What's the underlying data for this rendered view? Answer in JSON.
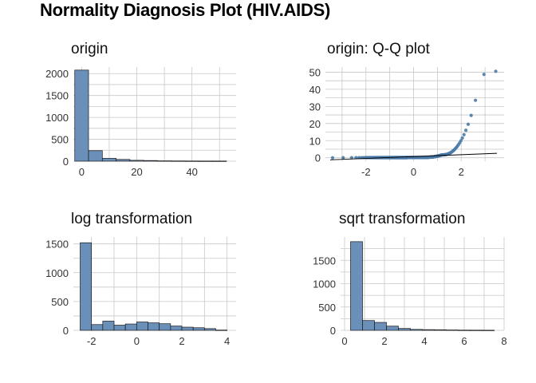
{
  "title": "Normality Diagnosis Plot (HIV.AIDS)",
  "colors": {
    "bar_fill": "#6a8fb9",
    "bar_stroke": "#1a1a1a",
    "point": "#4a7aa8",
    "line": "#000000",
    "grid": "#c8c8c8"
  },
  "chart_data": [
    {
      "id": "origin",
      "type": "bar",
      "title": "origin",
      "xlim": [
        -3,
        56
      ],
      "ylim": [
        0,
        2150
      ],
      "xticks": [
        0,
        20,
        40
      ],
      "yticks": [
        0,
        500,
        1000,
        1500,
        2000
      ],
      "bins": [
        {
          "x0": -2.5,
          "x1": 2.5,
          "count": 2080
        },
        {
          "x0": 2.5,
          "x1": 7.5,
          "count": 240
        },
        {
          "x0": 7.5,
          "x1": 12.5,
          "count": 65
        },
        {
          "x0": 12.5,
          "x1": 17.5,
          "count": 40
        },
        {
          "x0": 17.5,
          "x1": 22.5,
          "count": 20
        },
        {
          "x0": 22.5,
          "x1": 27.5,
          "count": 15
        },
        {
          "x0": 27.5,
          "x1": 32.5,
          "count": 8
        },
        {
          "x0": 32.5,
          "x1": 37.5,
          "count": 6
        },
        {
          "x0": 37.5,
          "x1": 42.5,
          "count": 5
        },
        {
          "x0": 42.5,
          "x1": 47.5,
          "count": 4
        },
        {
          "x0": 47.5,
          "x1": 52.5,
          "count": 4
        }
      ]
    },
    {
      "id": "qq",
      "type": "scatter",
      "title": "origin: Q-Q plot",
      "xlim": [
        -3.7,
        3.8
      ],
      "ylim": [
        -2,
        53
      ],
      "xticks": [
        -2,
        0,
        2
      ],
      "yticks": [
        0,
        10,
        20,
        30,
        40,
        50
      ],
      "ref_line": {
        "x0": -3.5,
        "y0": -1.2,
        "x1": 3.5,
        "y1": 2.6
      }
    },
    {
      "id": "log",
      "type": "bar",
      "title": "log transformation",
      "xlim": [
        -2.8,
        4.4
      ],
      "ylim": [
        0,
        1620
      ],
      "xticks": [
        -2,
        0,
        2,
        4
      ],
      "yticks": [
        0,
        500,
        1000,
        1500
      ],
      "bins": [
        {
          "x0": -2.5,
          "x1": -2.0,
          "count": 1520
        },
        {
          "x0": -2.0,
          "x1": -1.5,
          "count": 100
        },
        {
          "x0": -1.5,
          "x1": -1.0,
          "count": 160
        },
        {
          "x0": -1.0,
          "x1": -0.5,
          "count": 90
        },
        {
          "x0": -0.5,
          "x1": 0.0,
          "count": 110
        },
        {
          "x0": 0.0,
          "x1": 0.5,
          "count": 145
        },
        {
          "x0": 0.5,
          "x1": 1.0,
          "count": 130
        },
        {
          "x0": 1.0,
          "x1": 1.5,
          "count": 115
        },
        {
          "x0": 1.5,
          "x1": 2.0,
          "count": 75
        },
        {
          "x0": 2.0,
          "x1": 2.5,
          "count": 55
        },
        {
          "x0": 2.5,
          "x1": 3.0,
          "count": 45
        },
        {
          "x0": 3.0,
          "x1": 3.5,
          "count": 30
        },
        {
          "x0": 3.5,
          "x1": 4.0,
          "count": 5
        }
      ]
    },
    {
      "id": "sqrt",
      "type": "bar",
      "title": "sqrt transformation",
      "xlim": [
        -0.2,
        8.0
      ],
      "ylim": [
        0,
        2000
      ],
      "xticks": [
        0,
        2,
        4,
        6,
        8
      ],
      "yticks": [
        0,
        500,
        1000,
        1500
      ],
      "bins": [
        {
          "x0": 0.3,
          "x1": 0.9,
          "count": 1900
        },
        {
          "x0": 0.9,
          "x1": 1.5,
          "count": 210
        },
        {
          "x0": 1.5,
          "x1": 2.1,
          "count": 170
        },
        {
          "x0": 2.1,
          "x1": 2.7,
          "count": 90
        },
        {
          "x0": 2.7,
          "x1": 3.3,
          "count": 40
        },
        {
          "x0": 3.3,
          "x1": 3.9,
          "count": 20
        },
        {
          "x0": 3.9,
          "x1": 4.5,
          "count": 15
        },
        {
          "x0": 4.5,
          "x1": 5.1,
          "count": 12
        },
        {
          "x0": 5.1,
          "x1": 5.7,
          "count": 8
        },
        {
          "x0": 5.7,
          "x1": 6.3,
          "count": 5
        },
        {
          "x0": 6.3,
          "x1": 6.9,
          "count": 4
        },
        {
          "x0": 6.9,
          "x1": 7.5,
          "count": 3
        }
      ]
    }
  ]
}
